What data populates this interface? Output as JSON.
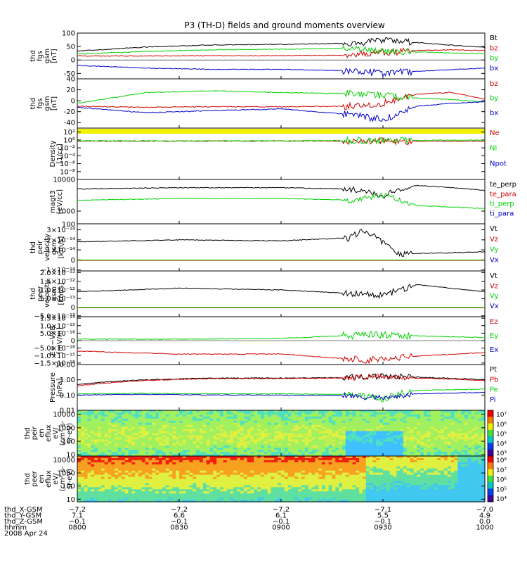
{
  "title": "P3 (TH-D) fields and ground moments overview",
  "colors": {
    "black": "#000000",
    "red": "#d00000",
    "green": "#00d000",
    "blue": "#0000c8",
    "yellow": "#f0f000"
  },
  "panels": [
    {
      "id": "fgs-gsm",
      "ylabel": [
        "thd",
        "fgs",
        "gsm",
        "[nT]"
      ],
      "scale": "linear",
      "ylim": [
        -70,
        100
      ],
      "ticks": [
        {
          "v": 100,
          "label": "100"
        },
        {
          "v": 50,
          "label": "50"
        },
        {
          "v": 0,
          "label": "0"
        },
        {
          "v": -50,
          "label": "-50"
        }
      ],
      "zero_line": true,
      "legend": [
        {
          "text": "Bt",
          "color": "#000000"
        },
        {
          "text": "bz",
          "color": "#d00000"
        },
        {
          "text": "by",
          "color": "#00d000"
        },
        {
          "text": "bx",
          "color": "#0000c8"
        }
      ]
    },
    {
      "id": "fgs-gsm-2",
      "ylabel": [
        "thd",
        "fgs",
        "gsm",
        "[nT]"
      ],
      "scale": "linear",
      "ylim": [
        -50,
        40
      ],
      "ticks": [
        {
          "v": 40,
          "label": "40"
        },
        {
          "v": 20,
          "label": "20"
        },
        {
          "v": 0,
          "label": "0"
        },
        {
          "v": -20,
          "label": "-20"
        },
        {
          "v": -40,
          "label": "-40"
        }
      ],
      "zero_line": false,
      "legend": [
        {
          "text": "bz",
          "color": "#d00000"
        },
        {
          "text": "by",
          "color": "#00d000"
        },
        {
          "text": "bx",
          "color": "#0000c8"
        }
      ]
    },
    {
      "id": "density",
      "ylabel": [
        "Density",
        "[1/cc]"
      ],
      "scale": "log",
      "ylim": [
        -10,
        3
      ],
      "ticks": [
        {
          "v": 2,
          "label": "10²"
        },
        {
          "v": 0,
          "label": "10⁰"
        },
        {
          "v": -2,
          "label": "10⁻²"
        },
        {
          "v": -4,
          "label": "10⁻⁴"
        },
        {
          "v": -6,
          "label": "10⁻⁶"
        },
        {
          "v": -8,
          "label": "10⁻⁸"
        }
      ],
      "zero_line": false,
      "legend": [
        {
          "text": "Ne",
          "color": "#d00000"
        },
        {
          "text": "Ni",
          "color": "#00d000"
        },
        {
          "text": "Npot",
          "color": "#0000c8"
        }
      ]
    },
    {
      "id": "temperature",
      "ylabel": [
        "magt3",
        "[eV/cc]"
      ],
      "scale": "log",
      "ylim": [
        2.6,
        4.0
      ],
      "ticks": [
        {
          "v": 4,
          "label": "10000"
        },
        {
          "v": 3,
          "label": "1000"
        }
      ],
      "zero_line": false,
      "legend": [
        {
          "text": "te_perp",
          "color": "#000000"
        },
        {
          "text": "te_para",
          "color": "#d00000"
        },
        {
          "text": "ti_perp",
          "color": "#00d000"
        },
        {
          "text": "ti_para",
          "color": "#0000c8"
        }
      ]
    },
    {
      "id": "peir-velocity",
      "ylabel": [
        "thd",
        "peir",
        "velocity",
        "gsm",
        "[km/s]"
      ],
      "scale": "linear",
      "ylim": [
        -1.1e-14,
        3.6e-14
      ],
      "ticks": [
        {
          "v": 3e-14,
          "label": "3×10⁻¹⁴"
        },
        {
          "v": 2e-14,
          "label": "2×10⁻¹⁴"
        },
        {
          "v": 1e-14,
          "label": "1×10⁻¹⁴"
        },
        {
          "v": 0,
          "label": "0"
        },
        {
          "v": -1e-14,
          "label": "−1×10⁻¹⁴"
        }
      ],
      "top_tick": "100",
      "zero_line": false,
      "legend": [
        {
          "text": "Vt",
          "color": "#000000"
        },
        {
          "text": "Vz",
          "color": "#d00000"
        },
        {
          "text": "Vy",
          "color": "#00d000"
        },
        {
          "text": "Vx",
          "color": "#0000c8"
        }
      ]
    },
    {
      "id": "peer-velocity",
      "ylabel": [
        "thd",
        "peer",
        "velocity",
        "gsm",
        "[km/s]"
      ],
      "scale": "linear",
      "ylim": [
        -5.5e-13,
        2.1e-12
      ],
      "ticks": [
        {
          "v": 2e-12,
          "label": "2.0×10⁻¹²"
        },
        {
          "v": 1.5e-12,
          "label": "1.5×10⁻¹²"
        },
        {
          "v": 1e-12,
          "label": "1.0×10⁻¹²"
        },
        {
          "v": 5e-13,
          "label": "5.0×10⁻¹³"
        },
        {
          "v": 0,
          "label": "0"
        },
        {
          "v": -5e-13,
          "label": "−5.0×10⁻¹³"
        }
      ],
      "zero_line": false,
      "legend": [
        {
          "text": "Vt",
          "color": "#000000"
        },
        {
          "text": "Vz",
          "color": "#d00000"
        },
        {
          "text": "Vy",
          "color": "#00d000"
        },
        {
          "text": "Vx",
          "color": "#0000c8"
        }
      ]
    },
    {
      "id": "efield",
      "ylabel": [
        "E=−VxB",
        "[mV/m]"
      ],
      "scale": "linear",
      "ylim": [
        -1.6e-15,
        1.6e-15
      ],
      "ticks": [
        {
          "v": 1.5e-15,
          "label": "1.5×10⁻¹⁵"
        },
        {
          "v": 1e-15,
          "label": "1.0×10⁻¹⁵"
        },
        {
          "v": 5e-16,
          "label": "5.0×10⁻¹⁶"
        },
        {
          "v": 0,
          "label": "0"
        },
        {
          "v": -5e-16,
          "label": "−5.0×10⁻¹⁶"
        },
        {
          "v": -1e-15,
          "label": "−1.0×10⁻¹⁵"
        },
        {
          "v": -1.5e-15,
          "label": "−1.5×10⁻¹⁵"
        }
      ],
      "zero_line": true,
      "legend": [
        {
          "text": "Ez",
          "color": "#d00000"
        },
        {
          "text": "Ey",
          "color": "#00d000"
        },
        {
          "text": "Ex",
          "color": "#0000c8"
        }
      ]
    },
    {
      "id": "pressure",
      "ylabel": [
        "Pressure",
        "[nPa]"
      ],
      "scale": "log",
      "ylim": [
        -2,
        1
      ],
      "ticks": [
        {
          "v": 1,
          "label": "10.00"
        },
        {
          "v": 0,
          "label": "1.00"
        },
        {
          "v": -1,
          "label": "0.10"
        },
        {
          "v": -2,
          "label": "0.01"
        }
      ],
      "zero_line": false,
      "legend": [
        {
          "text": "Pt",
          "color": "#000000"
        },
        {
          "text": "Pb",
          "color": "#d00000"
        },
        {
          "text": "Pe",
          "color": "#00d000"
        },
        {
          "text": "Pi",
          "color": "#0000c8"
        }
      ]
    },
    {
      "id": "peir-spectrogram",
      "ylabel": [
        "thd",
        "peir",
        "en",
        "eflux",
        "eV/",
        "(cm²-s-",
        "sr-eV)"
      ],
      "scale": "log",
      "ylim": [
        0.9,
        4.3
      ],
      "ticks": [
        {
          "v": 4,
          "label": "10000"
        },
        {
          "v": 3,
          "label": "1000"
        },
        {
          "v": 2,
          "label": "100"
        },
        {
          "v": 1,
          "label": "10"
        }
      ],
      "zero_line": false,
      "colorbar": [
        "10⁷",
        "10⁶",
        "10⁵",
        "10⁴",
        "10³"
      ],
      "legend": []
    },
    {
      "id": "peer-spectrogram",
      "ylabel": [
        "thd",
        "peer",
        "en",
        "eflux",
        "eV/",
        "(cm²-s-",
        "sr-eV)"
      ],
      "scale": "log",
      "ylim": [
        0.8,
        4.3
      ],
      "ticks": [
        {
          "v": 4,
          "label": "10000"
        },
        {
          "v": 3,
          "label": "1000"
        },
        {
          "v": 2,
          "label": "100"
        },
        {
          "v": 1,
          "label": "10"
        }
      ],
      "zero_line": false,
      "colorbar": [
        "10⁸",
        "10⁷",
        "10⁶",
        "10⁵",
        "10⁴"
      ],
      "legend": []
    }
  ],
  "x_axis": {
    "rows": [
      {
        "label": "thd_X-GSM",
        "values": [
          "−7.2",
          "−7.2",
          "−7.2",
          "−7.1",
          "−7.0"
        ]
      },
      {
        "label": "thd_Y-GSM",
        "values": [
          "7.1",
          "6.6",
          "6.1",
          "5.5",
          "4.9"
        ]
      },
      {
        "label": "thd_Z-GSM",
        "values": [
          "−0.1",
          "−0.1",
          "−0.1",
          "−0.1",
          "0.0"
        ]
      },
      {
        "label": "hhmm",
        "values": [
          "0800",
          "0830",
          "0900",
          "0930",
          "1000"
        ]
      }
    ],
    "date": "2008 Apr 24"
  },
  "chart_data": {
    "type": "line",
    "title": "P3 (TH-D) fields and ground moments overview",
    "x_range": [
      "08:00",
      "10:00"
    ],
    "x_ticks": [
      "0800",
      "0830",
      "0900",
      "0930",
      "1000"
    ],
    "panels": [
      {
        "name": "thd fgs gsm [nT]",
        "series": [
          {
            "name": "Bt",
            "x": [
              "08:00",
              "08:20",
              "08:40",
              "09:00",
              "09:20",
              "09:30",
              "09:40",
              "09:50",
              "10:00"
            ],
            "values": [
              33,
              48,
              56,
              58,
              62,
              72,
              65,
              55,
              47
            ]
          },
          {
            "name": "bz",
            "x": [
              "08:00",
              "08:20",
              "08:40",
              "09:00",
              "09:20",
              "09:30",
              "09:40",
              "09:50",
              "10:00"
            ],
            "values": [
              15,
              15,
              16,
              16,
              18,
              28,
              35,
              38,
              35
            ]
          },
          {
            "name": "by",
            "x": [
              "08:00",
              "08:20",
              "08:40",
              "09:00",
              "09:20",
              "09:30",
              "09:40",
              "09:50",
              "10:00"
            ],
            "values": [
              22,
              32,
              38,
              40,
              43,
              33,
              30,
              26,
              24
            ]
          },
          {
            "name": "bx",
            "x": [
              "08:00",
              "08:20",
              "08:40",
              "09:00",
              "09:20",
              "09:30",
              "09:40",
              "09:50",
              "10:00"
            ],
            "values": [
              -20,
              -30,
              -35,
              -35,
              -40,
              -48,
              -42,
              -36,
              -30
            ]
          }
        ]
      },
      {
        "name": "thd fgs gsm [nT] (2)",
        "series": [
          {
            "name": "bz",
            "x": [
              "08:00",
              "08:20",
              "08:40",
              "09:00",
              "09:20",
              "09:30",
              "09:40",
              "09:50",
              "10:00"
            ],
            "values": [
              -10,
              -12,
              -11,
              -11,
              -10,
              -5,
              12,
              15,
              3
            ]
          },
          {
            "name": "by",
            "x": [
              "08:00",
              "08:20",
              "08:40",
              "09:00",
              "09:20",
              "09:30",
              "09:40",
              "09:50",
              "10:00"
            ],
            "values": [
              -5,
              15,
              18,
              15,
              13,
              10,
              5,
              2,
              -2
            ]
          },
          {
            "name": "bx",
            "x": [
              "08:00",
              "08:20",
              "08:40",
              "09:00",
              "09:20",
              "09:30",
              "09:40",
              "09:50",
              "10:00"
            ],
            "values": [
              -12,
              -22,
              -18,
              -15,
              -25,
              -35,
              -10,
              -5,
              -2
            ]
          }
        ]
      },
      {
        "name": "Density [1/cc]",
        "series": [
          {
            "name": "Ne",
            "x": [
              "08:00",
              "09:00",
              "09:30",
              "10:00"
            ],
            "values": [
              0.5,
              0.55,
              0.5,
              0.45
            ]
          },
          {
            "name": "Ni",
            "x": [
              "08:00",
              "09:00",
              "09:30",
              "10:00"
            ],
            "values": [
              0.6,
              0.6,
              0.7,
              0.9
            ]
          }
        ]
      },
      {
        "name": "magt3 [eV/cc]",
        "series": [
          {
            "name": "te_perp",
            "x": [
              "08:00",
              "08:30",
              "09:00",
              "09:20",
              "09:30",
              "09:40",
              "10:00"
            ],
            "values": [
              5000,
              5500,
              5500,
              5000,
              3000,
              6500,
              4500
            ]
          },
          {
            "name": "ti_perp",
            "x": [
              "08:00",
              "08:30",
              "09:00",
              "09:20",
              "09:30",
              "09:40",
              "10:00"
            ],
            "values": [
              2200,
              2500,
              2500,
              2200,
              3000,
              1500,
              1200
            ]
          }
        ]
      },
      {
        "name": "thd peir velocity gsm [km/s]",
        "series": [
          {
            "name": "Vt",
            "x": [
              "08:00",
              "08:30",
              "09:00",
              "09:20",
              "09:25",
              "09:35",
              "10:00"
            ],
            "values": [
              1.8e-14,
              2e-14,
              1.9e-14,
              2.2e-14,
              3e-14,
              6e-15,
              8e-15
            ]
          }
        ]
      },
      {
        "name": "thd peer velocity gsm [km/s]",
        "series": [
          {
            "name": "Vt",
            "x": [
              "08:00",
              "08:30",
              "09:00",
              "09:20",
              "09:30",
              "09:40",
              "10:00"
            ],
            "values": [
              9e-13,
              1.1e-12,
              1e-12,
              8e-13,
              7e-13,
              1.3e-12,
              9e-13
            ]
          }
        ]
      },
      {
        "name": "E=−VxB [mV/m]",
        "series": [
          {
            "name": "Ez",
            "x": [
              "08:00",
              "08:30",
              "09:00",
              "09:25",
              "09:35",
              "10:00"
            ],
            "values": [
              -7e-16,
              -9e-16,
              -9e-16,
              -1.3e-15,
              -1.1e-15,
              -8e-16
            ]
          },
          {
            "name": "Ey",
            "x": [
              "08:00",
              "08:30",
              "09:00",
              "09:25",
              "09:35",
              "10:00"
            ],
            "values": [
              1e-16,
              1e-16,
              1.5e-16,
              4e-16,
              3.5e-16,
              2e-16
            ]
          }
        ]
      },
      {
        "name": "Pressure [nPa]",
        "series": [
          {
            "name": "Pt",
            "x": [
              "08:00",
              "08:20",
              "08:40",
              "09:00",
              "09:20",
              "09:30",
              "09:40",
              "10:00"
            ],
            "values": [
              0.5,
              1.0,
              1.3,
              1.3,
              1.4,
              1.8,
              1.5,
              1.0
            ]
          },
          {
            "name": "Pb",
            "x": [
              "08:00",
              "08:20",
              "08:40",
              "09:00",
              "09:20",
              "09:30",
              "09:40",
              "10:00"
            ],
            "values": [
              0.4,
              0.9,
              1.2,
              1.2,
              1.3,
              1.6,
              1.3,
              0.9
            ]
          },
          {
            "name": "Pe",
            "x": [
              "08:00",
              "08:20",
              "08:40",
              "09:00",
              "09:20",
              "09:30",
              "09:40",
              "10:00"
            ],
            "values": [
              0.12,
              0.13,
              0.12,
              0.12,
              0.11,
              0.05,
              0.2,
              0.25
            ]
          },
          {
            "name": "Pi",
            "x": [
              "08:00",
              "08:20",
              "08:40",
              "09:00",
              "09:20",
              "09:30",
              "09:40",
              "10:00"
            ],
            "values": [
              0.1,
              0.11,
              0.1,
              0.1,
              0.09,
              0.06,
              0.12,
              0.15
            ]
          }
        ]
      }
    ]
  }
}
